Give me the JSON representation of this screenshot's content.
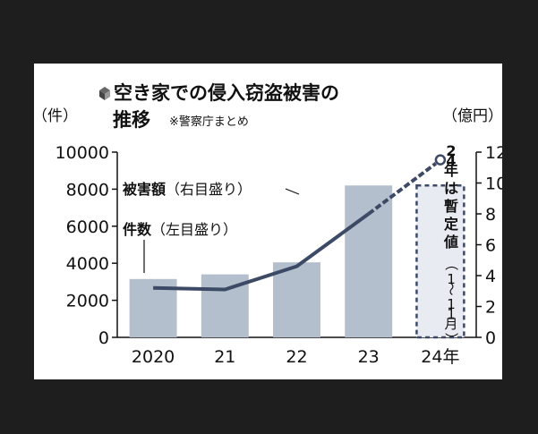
{
  "chart_data": {
    "type": "bar",
    "title_line1": "空き家での侵入窃盗被害の",
    "title_line2": "推移",
    "source": "※警察庁まとめ",
    "left_axis_unit": "（件）",
    "right_axis_unit": "（億円）",
    "categories": [
      "2020",
      "21",
      "22",
      "23",
      "24年"
    ],
    "left_ticks": [
      "0",
      "2000",
      "4000",
      "6000",
      "8000",
      "10000"
    ],
    "right_ticks": [
      "0",
      "2",
      "4",
      "6",
      "8",
      "10",
      "12"
    ],
    "ylim_left": [
      0,
      10000
    ],
    "ylim_right": [
      0,
      12
    ],
    "series": [
      {
        "name": "件数（左目盛り）",
        "type": "bar",
        "axis": "left",
        "values": [
          3150,
          3400,
          4050,
          8200,
          8200
        ],
        "color": "#b3bfcd",
        "provisional_last": true
      },
      {
        "name": "被害額（右目盛り）",
        "type": "line",
        "axis": "right",
        "values": [
          3.2,
          3.1,
          4.6,
          8.0,
          11.5
        ],
        "color": "#3c4a66",
        "provisional_last": true
      }
    ],
    "note_24": "24年は暫定値",
    "note_24_range": "（1〜11月）"
  }
}
